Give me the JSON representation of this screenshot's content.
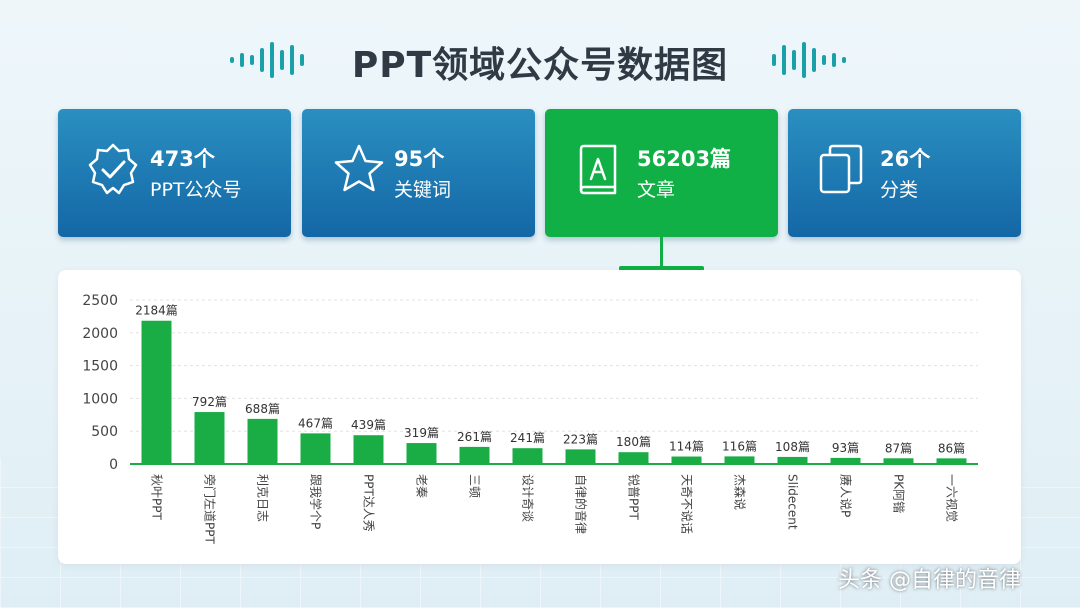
{
  "title": "PPT领域公众号数据图",
  "cards": [
    {
      "value": "473个",
      "label": "PPT公众号",
      "icon": "badge-check-icon"
    },
    {
      "value": "95个",
      "label": "关键词",
      "icon": "star-icon"
    },
    {
      "value": "56203篇",
      "label": "文章",
      "icon": "book-icon"
    },
    {
      "value": "26个",
      "label": "分类",
      "icon": "copy-icon"
    }
  ],
  "colors": {
    "bar": "#1aad45",
    "blue": "#1a78b3",
    "green": "#10b046"
  },
  "chart_data": {
    "type": "bar",
    "categories": [
      "秋叶PPT",
      "旁门左道PPT",
      "利克日志",
      "跟我学个P",
      "PPT达人秀",
      "老秦",
      "三顿",
      "设计奇谈",
      "自律的音律",
      "锐普PPT",
      "天奇不说话",
      "杰森说",
      "Slidecent",
      "赓人说P",
      "PK阿锴",
      "一六视觉"
    ],
    "values": [
      2184,
      792,
      688,
      467,
      439,
      319,
      261,
      241,
      223,
      180,
      114,
      116,
      108,
      93,
      87,
      86
    ],
    "value_labels": [
      "2184篇",
      "792篇",
      "688篇",
      "467篇",
      "439篇",
      "319篇",
      "261篇",
      "241篇",
      "223篇",
      "180篇",
      "114篇",
      "116篇",
      "108篇",
      "93篇",
      "87篇",
      "86篇"
    ],
    "yticks": [
      0,
      500,
      1000,
      1500,
      2000,
      2500
    ],
    "ylim": [
      0,
      2500
    ],
    "grid": true
  },
  "watermark": "头条 @自律的音律"
}
